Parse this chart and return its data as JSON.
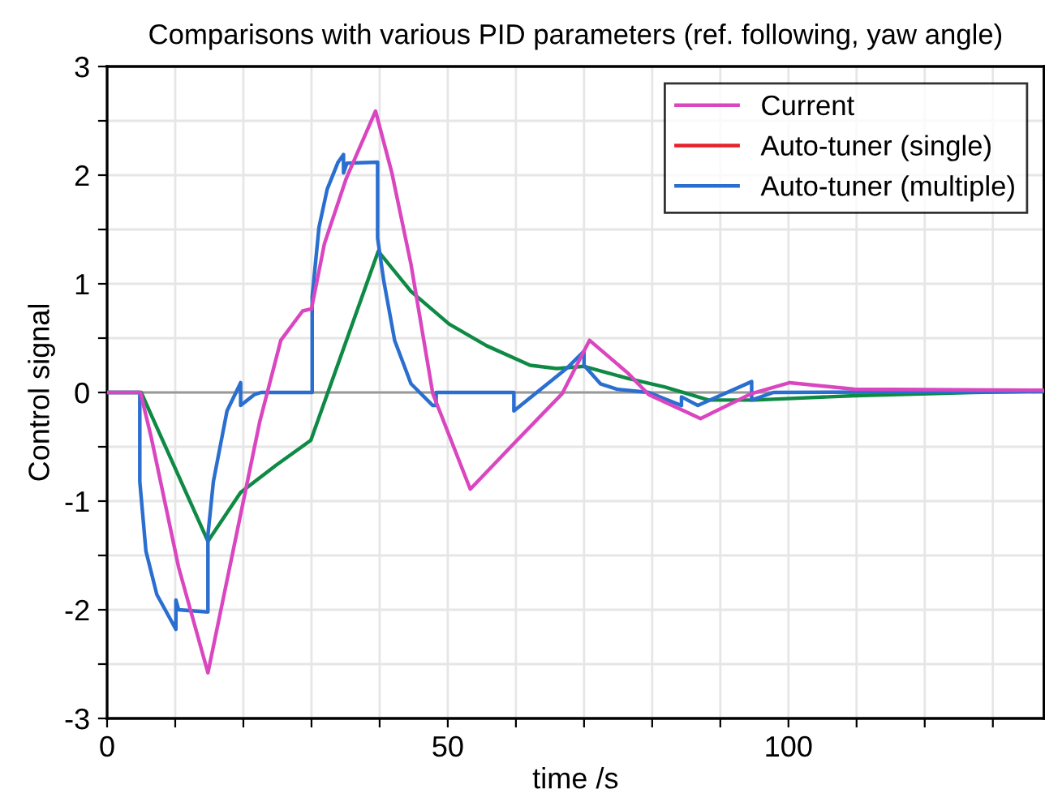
{
  "chart_data": {
    "type": "line",
    "title": "Comparisons with various PID parameters (ref. following, yaw angle)",
    "xlabel": "time /s",
    "ylabel": "Control signal",
    "series": [
      {
        "name": "Current",
        "color": "#d946c0",
        "x": [
          0,
          4.9,
          6.5,
          10.5,
          14.8,
          22.4,
          25.5,
          28.7,
          30,
          31.9,
          35.1,
          39.4,
          41.8,
          44.6,
          47.8,
          53.3,
          59.7,
          66.8,
          70.8,
          76.4,
          79.5,
          87.1,
          94.6,
          100.2,
          109.7,
          137.5
        ],
        "values": [
          0,
          0,
          -0.42,
          -1.61,
          -2.58,
          -0.27,
          0.48,
          0.75,
          0.77,
          1.37,
          1.97,
          2.59,
          2.02,
          1.18,
          -0.01,
          -0.89,
          -0.47,
          -0.01,
          0.48,
          0.18,
          -0.02,
          -0.24,
          -0.01,
          0.09,
          0.03,
          0.02
        ]
      },
      {
        "name": "Auto-tuner (single)",
        "color": "#e8202a"
      },
      {
        "name": "Auto-tuner (multiple)",
        "color": "#2a6fd0",
        "x": [
          0,
          4.8,
          4.8,
          5.7,
          7.3,
          10.1,
          10.1,
          10.5,
          14.8,
          14.8,
          15.6,
          17.6,
          19.6,
          19.6,
          21.6,
          22.6,
          30.1,
          30.1,
          31.1,
          32.3,
          33.9,
          34.7,
          34.7,
          35.2,
          39.7,
          39.7,
          40.6,
          42.2,
          44.6,
          47.8,
          48.3,
          48.3,
          59.7,
          59.7,
          67.6,
          70,
          70,
          72.4,
          74.8,
          79.5,
          84.3,
          84.3,
          86.7,
          94.6,
          94.6,
          97.8,
          137.5
        ],
        "values": [
          0,
          0,
          -0.82,
          -1.46,
          -1.86,
          -2.18,
          -1.91,
          -2.0,
          -2.02,
          -1.31,
          -0.82,
          -0.17,
          0.09,
          -0.12,
          -0.02,
          0,
          0,
          0.88,
          1.52,
          1.87,
          2.12,
          2.19,
          2.02,
          2.11,
          2.12,
          1.42,
          1.03,
          0.48,
          0.08,
          -0.12,
          -0.12,
          0,
          0,
          -0.17,
          0.23,
          0.38,
          0.25,
          0.08,
          0.03,
          0,
          -0.12,
          -0.04,
          -0.12,
          0.1,
          -0.07,
          0,
          0.01
        ]
      },
      {
        "color": "#0e8a45",
        "x": [
          0,
          5,
          14.8,
          19.6,
          24.8,
          29.9,
          39.8,
          44.6,
          50.2,
          55.7,
          62.1,
          66,
          70,
          76.4,
          81.9,
          88.3,
          95,
          109.7,
          127,
          137.5
        ],
        "values": [
          0,
          0,
          -1.37,
          -0.92,
          -0.67,
          -0.44,
          1.3,
          0.93,
          0.63,
          0.43,
          0.25,
          0.22,
          0.24,
          0.13,
          0.05,
          -0.07,
          -0.07,
          -0.03,
          0,
          0.01
        ]
      }
    ],
    "xlim": [
      0,
      137.5
    ],
    "xticks": [
      0,
      {
        "value": 10,
        "label": null
      },
      {
        "value": 20,
        "label": null
      },
      {
        "value": 30,
        "label": null
      },
      {
        "value": 40,
        "label": null
      },
      50,
      {
        "value": 60,
        "label": null
      },
      {
        "value": 70,
        "label": null
      },
      {
        "value": 80,
        "label": null
      },
      {
        "value": 90,
        "label": null
      },
      100,
      {
        "value": 110,
        "label": null
      },
      {
        "value": 120,
        "label": null
      },
      {
        "value": 130,
        "label": null
      }
    ],
    "ylim": [
      -3,
      3
    ],
    "yticks": [
      -3,
      {
        "value": -2.5,
        "label": null
      },
      -2,
      {
        "value": -1.5,
        "label": null
      },
      -1,
      {
        "value": -0.5,
        "label": null
      },
      0,
      {
        "value": 0.5,
        "label": null
      },
      1,
      {
        "value": 1.5,
        "label": null
      },
      2,
      {
        "value": 2.5,
        "label": null
      },
      3
    ],
    "ref_lines": [
      {
        "axis": "y",
        "value": 0,
        "color": "#999999"
      }
    ],
    "grid": true,
    "legend": "top right",
    "line_style": "solid",
    "marker": "none"
  }
}
